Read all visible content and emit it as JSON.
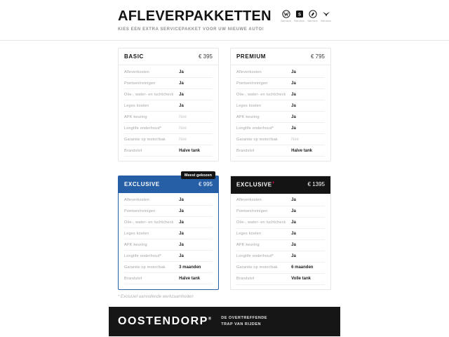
{
  "header": {
    "title": "AFLEVERPAKKETTEN",
    "subtitle": "KIES EEN EXTRA SERVICEPAKKET VOOR UW NIEUWE AUTO!",
    "brands": [
      {
        "id": "volkswagen",
        "label": "Service"
      },
      {
        "id": "seat",
        "label": "Service"
      },
      {
        "id": "skoda",
        "label": "Service"
      },
      {
        "id": "cupra",
        "label": "Service"
      }
    ]
  },
  "row_labels": [
    "Afleverkosten",
    "Poetsen/reinigen",
    "Olie-, water- en luchtcheck",
    "Leges kosten",
    "APK keuring",
    "Longlife onderhoud*",
    "Garantie op motor/bak",
    "Brandstof"
  ],
  "packages": [
    {
      "id": "basic",
      "name": "BASIC",
      "name_suffix": "",
      "price": "€ 395",
      "header_style": "light",
      "badge": "",
      "values": [
        {
          "text": "Ja",
          "muted": false
        },
        {
          "text": "Ja",
          "muted": false
        },
        {
          "text": "Ja",
          "muted": false
        },
        {
          "text": "Ja",
          "muted": false
        },
        {
          "text": "Nee",
          "muted": true
        },
        {
          "text": "Nee",
          "muted": true
        },
        {
          "text": "Nee",
          "muted": true
        },
        {
          "text": "Halve tank",
          "muted": false
        }
      ]
    },
    {
      "id": "premium",
      "name": "PREMIUM",
      "name_suffix": "",
      "price": "€ 795",
      "header_style": "light",
      "badge": "",
      "values": [
        {
          "text": "Ja",
          "muted": false
        },
        {
          "text": "Ja",
          "muted": false
        },
        {
          "text": "Ja",
          "muted": false
        },
        {
          "text": "Ja",
          "muted": false
        },
        {
          "text": "Ja",
          "muted": false
        },
        {
          "text": "Ja",
          "muted": false
        },
        {
          "text": "Nee",
          "muted": true
        },
        {
          "text": "Halve tank",
          "muted": false
        }
      ]
    },
    {
      "id": "exclusive",
      "name": "EXCLUSIVE",
      "name_suffix": "",
      "price": "€ 995",
      "header_style": "blue",
      "badge": "Meest gekozen",
      "values": [
        {
          "text": "Ja",
          "muted": false
        },
        {
          "text": "Ja",
          "muted": false
        },
        {
          "text": "Ja",
          "muted": false
        },
        {
          "text": "Ja",
          "muted": false
        },
        {
          "text": "Ja",
          "muted": false
        },
        {
          "text": "Ja",
          "muted": false
        },
        {
          "text": "3 maanden",
          "muted": false
        },
        {
          "text": "Halve tank",
          "muted": false
        }
      ]
    },
    {
      "id": "exclusive-plus",
      "name": "EXCLUSIVE",
      "name_suffix": "+",
      "price": "€ 1395",
      "header_style": "dark",
      "badge": "",
      "values": [
        {
          "text": "Ja",
          "muted": false
        },
        {
          "text": "Ja",
          "muted": false
        },
        {
          "text": "Ja",
          "muted": false
        },
        {
          "text": "Ja",
          "muted": false
        },
        {
          "text": "Ja",
          "muted": false
        },
        {
          "text": "Ja",
          "muted": false
        },
        {
          "text": "6 maanden",
          "muted": false
        },
        {
          "text": "Volle tank",
          "muted": false
        }
      ]
    }
  ],
  "footnote": "* Exclusief aanvullende werkzaamheden",
  "footer": {
    "logo": "OOSTENDORP",
    "reg": "®",
    "tagline_line1": "DE OVERTREFFENDE",
    "tagline_line2": "TRAP VAN RIJDEN"
  },
  "colors": {
    "accent_blue": "#275fa6",
    "dark": "#141414",
    "suffix_red": "#e2003c",
    "muted_value": "#c8c8c8",
    "label_gray": "#a3a3a3"
  }
}
